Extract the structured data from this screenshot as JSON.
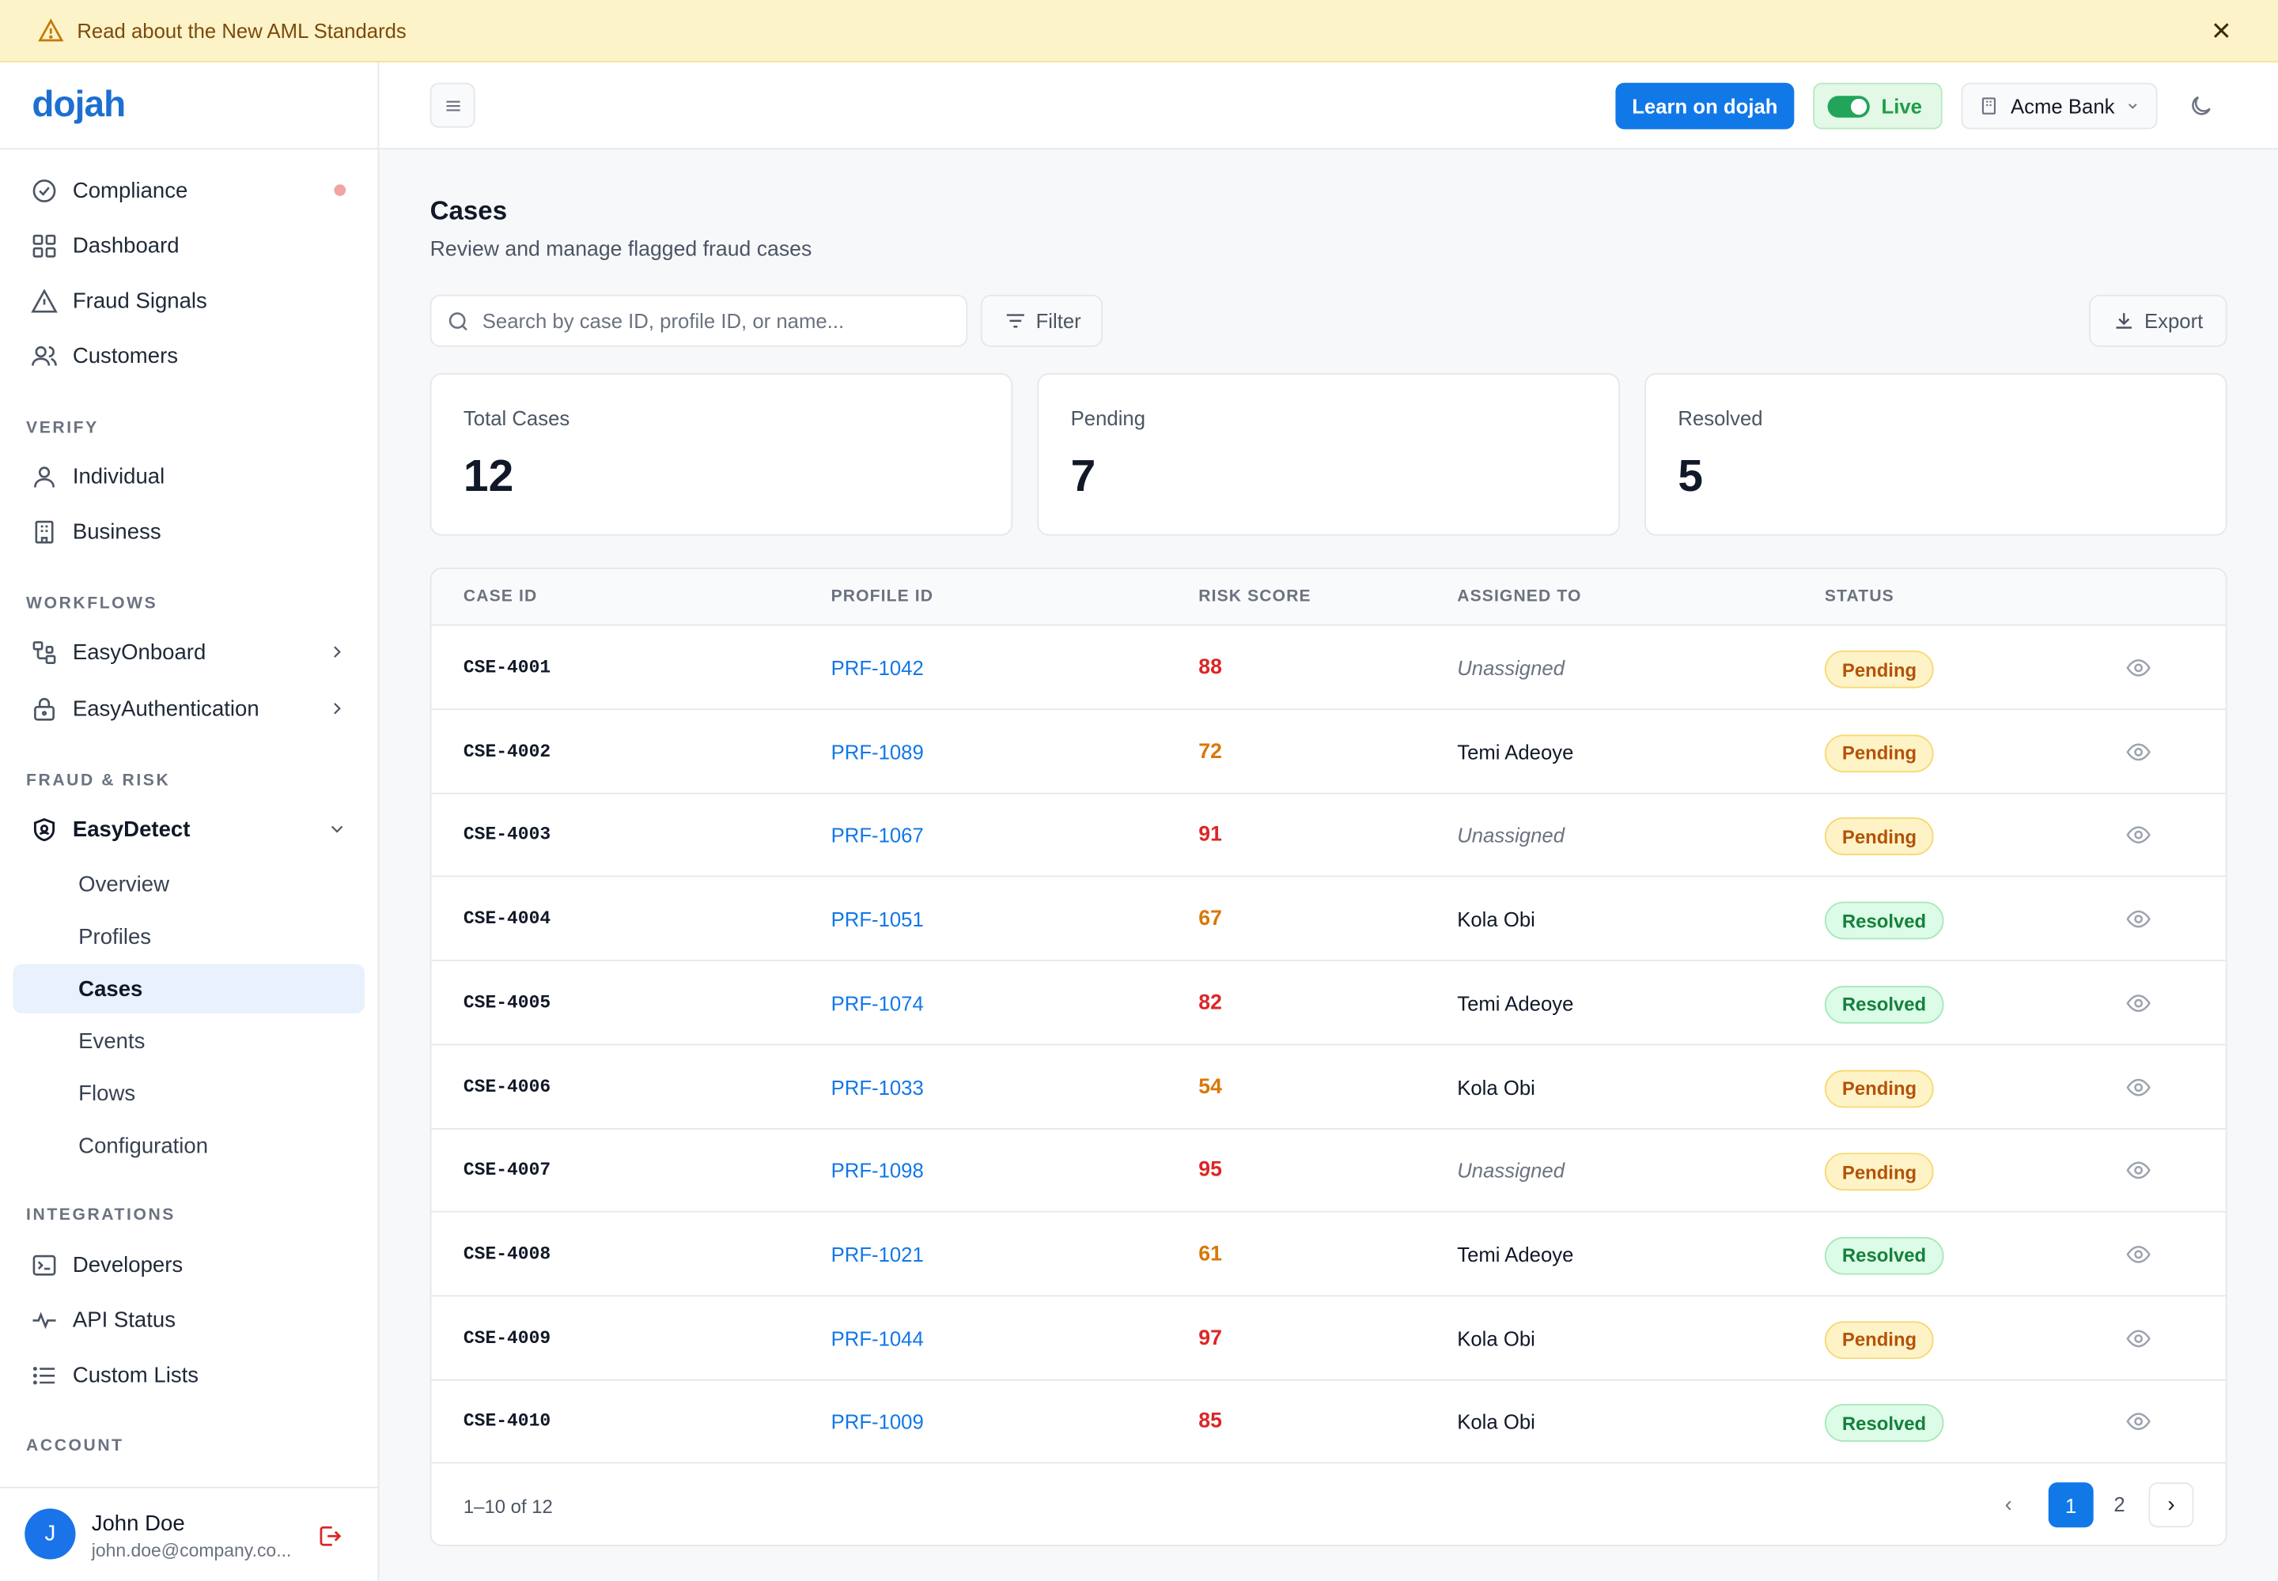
{
  "banner": {
    "text": "Read about the New AML Standards",
    "icon": "warning-icon",
    "close_icon": "close-icon"
  },
  "brand": {
    "logo": "dojah",
    "accent": "#1178e8"
  },
  "sidebar": {
    "top_items": [
      {
        "label": "Compliance",
        "icon": "check-circle-icon",
        "has_dot": true
      },
      {
        "label": "Dashboard",
        "icon": "grid-icon"
      },
      {
        "label": "Fraud Signals",
        "icon": "triangle-alert-icon"
      },
      {
        "label": "Customers",
        "icon": "users-icon"
      }
    ],
    "sections": {
      "verify": "VERIFY",
      "workflows": "WORKFLOWS",
      "fraud_risk": "FRAUD & RISK",
      "integrations": "INTEGRATIONS",
      "account": "ACCOUNT"
    },
    "verify_items": [
      {
        "label": "Individual",
        "icon": "user-icon"
      },
      {
        "label": "Business",
        "icon": "building-icon"
      }
    ],
    "workflow_items": [
      {
        "label": "EasyOnboard",
        "icon": "workflow-icon"
      },
      {
        "label": "EasyAuthentication",
        "icon": "lock-icon"
      }
    ],
    "easydetect": {
      "label": "EasyDetect",
      "icon": "shield-icon",
      "children": [
        "Overview",
        "Profiles",
        "Cases",
        "Events",
        "Flows",
        "Configuration"
      ],
      "active": "Cases"
    },
    "integration_items": [
      {
        "label": "Developers",
        "icon": "terminal-icon"
      },
      {
        "label": "API Status",
        "icon": "activity-icon"
      },
      {
        "label": "Custom Lists",
        "icon": "list-icon"
      }
    ],
    "user": {
      "initial": "J",
      "name": "John Doe",
      "email": "john.doe@company.co..."
    }
  },
  "header": {
    "learn_label": "Learn on dojah",
    "live_label": "Live",
    "org_label": "Acme Bank"
  },
  "page": {
    "title": "Cases",
    "subtitle": "Review and manage flagged fraud cases",
    "search_placeholder": "Search by case ID, profile ID, or name...",
    "filter_label": "Filter",
    "export_label": "Export"
  },
  "stats": [
    {
      "label": "Total Cases",
      "value": "12"
    },
    {
      "label": "Pending",
      "value": "7"
    },
    {
      "label": "Resolved",
      "value": "5"
    }
  ],
  "table": {
    "columns": [
      "CASE ID",
      "PROFILE ID",
      "RISK SCORE",
      "ASSIGNED TO",
      "STATUS"
    ],
    "rows": [
      {
        "case_id": "CSE-4001",
        "profile_id": "PRF-1042",
        "risk": "88",
        "risk_level": "red",
        "assigned": "Unassigned",
        "unassigned": true,
        "status": "Pending"
      },
      {
        "case_id": "CSE-4002",
        "profile_id": "PRF-1089",
        "risk": "72",
        "risk_level": "orange",
        "assigned": "Temi Adeoye",
        "unassigned": false,
        "status": "Pending"
      },
      {
        "case_id": "CSE-4003",
        "profile_id": "PRF-1067",
        "risk": "91",
        "risk_level": "red",
        "assigned": "Unassigned",
        "unassigned": true,
        "status": "Pending"
      },
      {
        "case_id": "CSE-4004",
        "profile_id": "PRF-1051",
        "risk": "67",
        "risk_level": "orange",
        "assigned": "Kola Obi",
        "unassigned": false,
        "status": "Resolved"
      },
      {
        "case_id": "CSE-4005",
        "profile_id": "PRF-1074",
        "risk": "82",
        "risk_level": "red",
        "assigned": "Temi Adeoye",
        "unassigned": false,
        "status": "Resolved"
      },
      {
        "case_id": "CSE-4006",
        "profile_id": "PRF-1033",
        "risk": "54",
        "risk_level": "orange",
        "assigned": "Kola Obi",
        "unassigned": false,
        "status": "Pending"
      },
      {
        "case_id": "CSE-4007",
        "profile_id": "PRF-1098",
        "risk": "95",
        "risk_level": "red",
        "assigned": "Unassigned",
        "unassigned": true,
        "status": "Pending"
      },
      {
        "case_id": "CSE-4008",
        "profile_id": "PRF-1021",
        "risk": "61",
        "risk_level": "orange",
        "assigned": "Temi Adeoye",
        "unassigned": false,
        "status": "Resolved"
      },
      {
        "case_id": "CSE-4009",
        "profile_id": "PRF-1044",
        "risk": "97",
        "risk_level": "red",
        "assigned": "Kola Obi",
        "unassigned": false,
        "status": "Pending"
      },
      {
        "case_id": "CSE-4010",
        "profile_id": "PRF-1009",
        "risk": "85",
        "risk_level": "red",
        "assigned": "Kola Obi",
        "unassigned": false,
        "status": "Resolved"
      }
    ],
    "range_text": "1–10 of 12",
    "pages": {
      "prev": "‹",
      "current": "1",
      "other": "2",
      "next": "›"
    }
  }
}
